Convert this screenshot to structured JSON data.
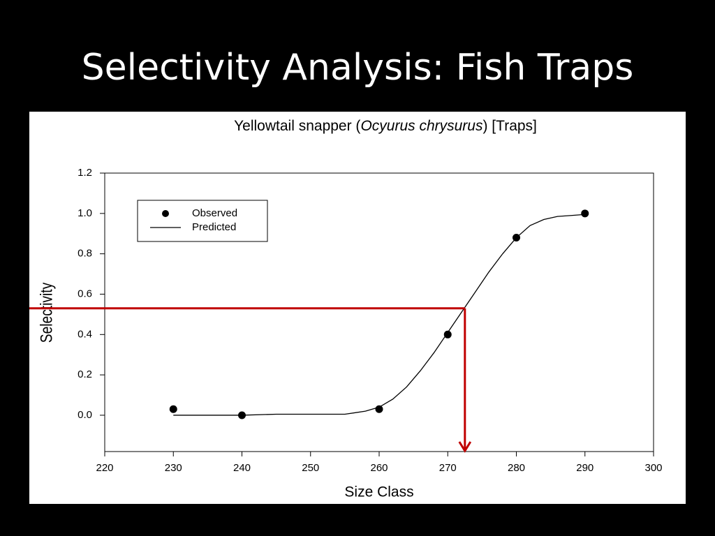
{
  "slide_title": "Selectivity Analysis: Fish Traps",
  "chart_data": {
    "type": "scatter",
    "title_parts": [
      "Yellowtail snapper (",
      "Ocyurus chrysurus",
      ") [Traps]"
    ],
    "x_label": "Size Class",
    "y_label": "Selectivity",
    "xlim": [
      220,
      300
    ],
    "xticks": [
      220,
      230,
      240,
      250,
      260,
      270,
      280,
      290,
      300
    ],
    "ylim": [
      -0.18,
      1.2
    ],
    "yticks": [
      {
        "value": 0,
        "label": "0.0"
      },
      0.2,
      0.4,
      0.6,
      0.8,
      {
        "value": 1,
        "label": "1.0"
      },
      1.2
    ],
    "legend": "upper left",
    "series": [
      {
        "name": "Observed",
        "kind": "points",
        "color": "#000000",
        "x": [
          230,
          240,
          260,
          270,
          280,
          290
        ],
        "values": [
          0.03,
          0.0,
          0.03,
          0.4,
          0.88,
          1.0
        ]
      },
      {
        "name": "Predicted",
        "kind": "line",
        "color": "#000000",
        "x": [
          230,
          235,
          240,
          245,
          250,
          255,
          258,
          260,
          262,
          264,
          266,
          268,
          270,
          272,
          274,
          276,
          278,
          280,
          282,
          284,
          286,
          288,
          290
        ],
        "values": [
          0,
          0,
          0,
          0.005,
          0.005,
          0.005,
          0.02,
          0.04,
          0.08,
          0.14,
          0.22,
          0.31,
          0.41,
          0.51,
          0.61,
          0.71,
          0.8,
          0.88,
          0.94,
          0.97,
          0.985,
          0.99,
          0.995
        ]
      }
    ],
    "reference": {
      "x": 272.5,
      "y": 0.53,
      "color": "#c00000"
    }
  }
}
